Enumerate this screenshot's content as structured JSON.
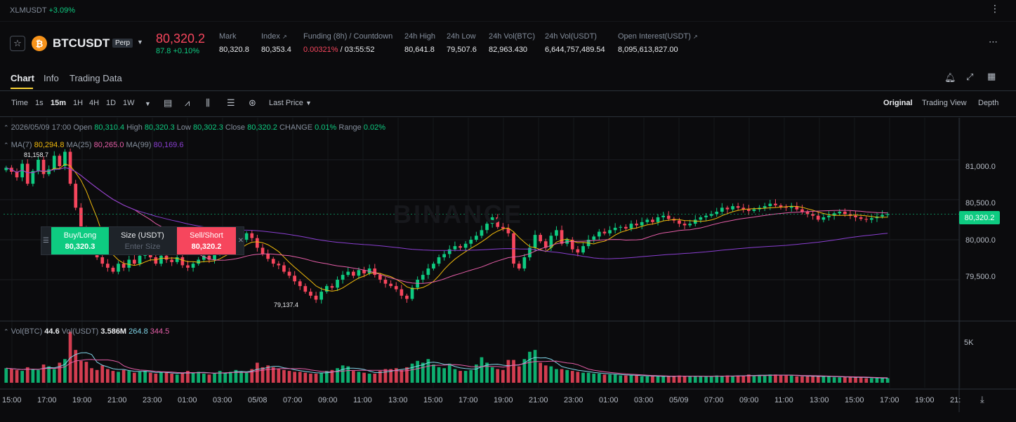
{
  "topbar": {
    "ticker_symbol": "XLMUSDT",
    "ticker_change": "+3.09%"
  },
  "header": {
    "symbol": "BTCUSDT",
    "contract_type": "Perp",
    "last_price": "80,320.2",
    "last_change": "87.8 +0.10%",
    "stats": [
      {
        "label": "Mark",
        "value": "80,320.8"
      },
      {
        "label": "Index",
        "value": "80,353.4"
      },
      {
        "label": "Funding (8h) / Countdown",
        "value_rate": "0.00321%",
        "value_countdown": "/ 03:55:52"
      },
      {
        "label": "24h High",
        "value": "80,641.8"
      },
      {
        "label": "24h Low",
        "value": "79,507.6"
      },
      {
        "label": "24h Vol(BTC)",
        "value": "82,963.430"
      },
      {
        "label": "24h Vol(USDT)",
        "value": "6,644,757,489.54"
      },
      {
        "label": "Open Interest(USDT)",
        "value": "8,095,613,827.00"
      }
    ]
  },
  "tabs": [
    "Chart",
    "Info",
    "Trading Data"
  ],
  "toolbar": {
    "intervals": [
      "Time",
      "1s",
      "15m",
      "1H",
      "4H",
      "1D",
      "1W"
    ],
    "active_interval": "15m",
    "price_type": "Last Price",
    "views": [
      "Original",
      "Trading View",
      "Depth"
    ],
    "active_view": "Original"
  },
  "chart_info": {
    "date": "2026/05/09 17:00",
    "open_label": "Open",
    "open": "80,310.4",
    "high_label": "High",
    "high": "80,320.3",
    "low_label": "Low",
    "low": "80,302.3",
    "close_label": "Close",
    "close": "80,320.2",
    "change_label": "CHANGE",
    "change": "0.01%",
    "range_label": "Range",
    "range": "0.02%"
  },
  "ma": {
    "ma7_label": "MA(7)",
    "ma7": "80,294.8",
    "ma25_label": "MA(25)",
    "ma25": "80,265.0",
    "ma99_label": "MA(99)",
    "ma99": "80,169.6"
  },
  "volume": {
    "btc_label": "Vol(BTC)",
    "btc": "44.6",
    "usdt_label": "Vol(USDT)",
    "usdt": "3.586M",
    "ma1": "264.8",
    "ma2": "344.5"
  },
  "trade_panel": {
    "buy_label": "Buy/Long",
    "buy_price": "80,320.3",
    "size_label": "Size (USDT)",
    "size_placeholder": "Enter Size",
    "sell_label": "Sell/Short",
    "sell_price": "80,320.2"
  },
  "chart_labels": {
    "high_marker": "81,158.7",
    "low_marker": "79,137.4",
    "current_price": "80,320.2",
    "watermark": "BINANCE"
  },
  "colors": {
    "up": "#0ecb81",
    "down": "#f6465d",
    "ma7": "#f0b90b",
    "ma25": "#e65ea8",
    "ma99": "#8a3fd1",
    "accent": "#fcd535"
  },
  "chart_data": {
    "type": "candlestick",
    "y_axis_ticks": [
      "81,000.0",
      "80,500.0",
      "80,000.0",
      "79,500.0"
    ],
    "volume_axis_ticks": [
      "5K"
    ],
    "x_axis_ticks": [
      "15:00",
      "17:00",
      "19:00",
      "21:00",
      "23:00",
      "01:00",
      "03:00",
      "05/08",
      "07:00",
      "09:00",
      "11:00",
      "13:00",
      "15:00",
      "17:00",
      "19:00",
      "21:00",
      "23:00",
      "01:00",
      "03:00",
      "05/09",
      "07:00",
      "09:00",
      "11:00",
      "13:00",
      "15:00",
      "17:00",
      "19:00",
      "21:"
    ],
    "ylim": [
      79000,
      81350
    ],
    "close": [
      80900,
      80850,
      80780,
      80950,
      80700,
      80860,
      81000,
      80820,
      80880,
      81050,
      80920,
      81100,
      80700,
      80400,
      80150,
      79950,
      79850,
      79780,
      79700,
      79650,
      79600,
      79700,
      79650,
      79750,
      79700,
      79800,
      79850,
      79780,
      79700,
      79800,
      79750,
      79720,
      79780,
      79680,
      79650,
      79700,
      79750,
      79800,
      79750,
      79820,
      79860,
      79900,
      79940,
      79980,
      80000,
      80080,
      80020,
      79900,
      79820,
      79760,
      79700,
      79680,
      79600,
      79550,
      79480,
      79420,
      79350,
      79300,
      79250,
      79350,
      79420,
      79400,
      79500,
      79560,
      79600,
      79550,
      79620,
      79580,
      79640,
      79560,
      79500,
      79450,
      79420,
      79380,
      79300,
      79260,
      79400,
      79500,
      79560,
      79640,
      79700,
      79780,
      79820,
      79880,
      79920,
      79900,
      79950,
      80000,
      80050,
      80120,
      80200,
      80280,
      80160,
      80140,
      80080,
      79700,
      79640,
      79780,
      79900,
      80060,
      79980,
      79900,
      80050,
      80120,
      79950,
      80000,
      79880,
      79840,
      79920,
      80000,
      80040,
      80100,
      80080,
      80120,
      80150,
      80160,
      80140,
      80200,
      80180,
      80220,
      80250,
      80220,
      80280,
      80300,
      80260,
      80240,
      80200,
      80180,
      80200,
      80250,
      80280,
      80300,
      80320,
      80350,
      80400,
      80380,
      80420,
      80400,
      80380,
      80360,
      80380,
      80400,
      80420,
      80450,
      80430,
      80410,
      80400,
      80420,
      80380,
      80350,
      80320,
      80300,
      80250,
      80280,
      80300,
      80330,
      80350,
      80320,
      80300,
      80280,
      80260,
      80250,
      80270,
      80290,
      80310,
      80320
    ],
    "volume": [
      1600,
      1500,
      1400,
      1300,
      1700,
      1500,
      1400,
      2000,
      1800,
      1500,
      2200,
      2600,
      5600,
      3600,
      2400,
      2300,
      1600,
      1400,
      1900,
      1500,
      1300,
      1200,
      1400,
      1300,
      1100,
      1200,
      1300,
      1100,
      1000,
      1200,
      1100,
      1000,
      900,
      1100,
      1300,
      1100,
      1200,
      1000,
      900,
      1000,
      1300,
      1100,
      1200,
      1400,
      1200,
      1100,
      1500,
      2200,
      1700,
      1900,
      1700,
      1500,
      1400,
      1300,
      1200,
      1200,
      1100,
      1000,
      1000,
      1100,
      1300,
      1400,
      1600,
      1900,
      1800,
      1300,
      1200,
      1100,
      1000,
      1000,
      1300,
      1500,
      1500,
      1600,
      1400,
      1700,
      2100,
      2400,
      2200,
      2600,
      2000,
      1700,
      1600,
      2100,
      1500,
      1300,
      1300,
      1400,
      2000,
      2800,
      2200,
      1700,
      1500,
      1400,
      2500,
      2500,
      1800,
      2600,
      3400,
      3600,
      2200,
      1900,
      1800,
      1500,
      1500,
      1400,
      1300,
      1200,
      1100,
      1100,
      1000,
      1000,
      900,
      900,
      900,
      800,
      800,
      800,
      800,
      700,
      700,
      700,
      700,
      700,
      700,
      700,
      800,
      700,
      700,
      700,
      700,
      700,
      700,
      800,
      700,
      800,
      700,
      800,
      800,
      900,
      800,
      800,
      800,
      900,
      900,
      800,
      800,
      800,
      700,
      700,
      700,
      700,
      700,
      700,
      700,
      600,
      600,
      600,
      600,
      600,
      600,
      500,
      500,
      500,
      500,
      500
    ]
  }
}
